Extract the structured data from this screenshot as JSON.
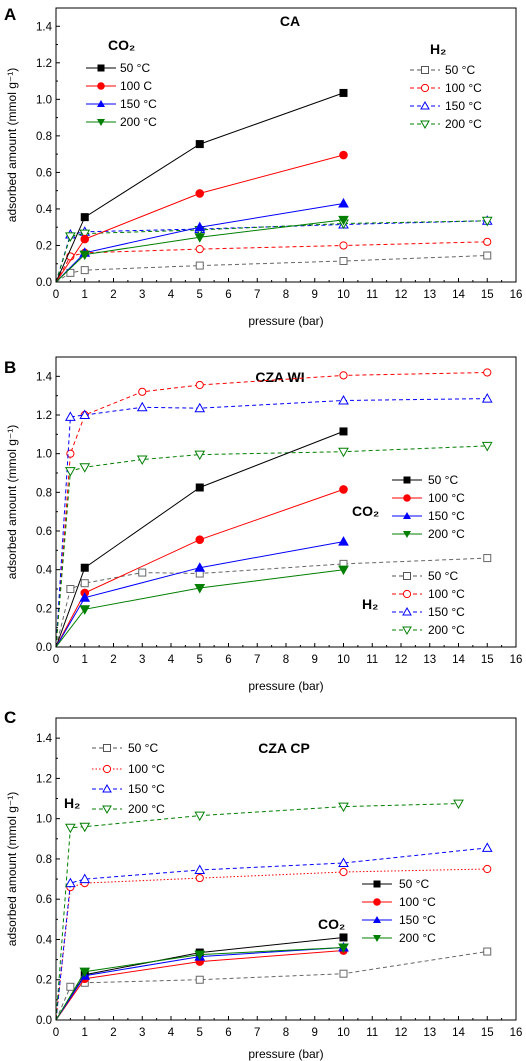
{
  "colors": {
    "black": "#000000",
    "red": "#ff0000",
    "blue": "#0000ff",
    "green": "#007f00",
    "grey": "#666666"
  },
  "chart_data": [
    {
      "panel": "A",
      "type": "line",
      "title": "CA",
      "xlabel": "pressure (bar)",
      "ylabel": "adsorbed amount (mmol g⁻¹)",
      "xlim": [
        0,
        16
      ],
      "ylim": [
        0,
        1.5
      ],
      "xticks": [
        "0",
        "1",
        "2",
        "3",
        "4",
        "5",
        "6",
        "7",
        "8",
        "9",
        "10",
        "11",
        "12",
        "13",
        "14",
        "15",
        "16"
      ],
      "yticks": [
        "0.0",
        "0.2",
        "0.4",
        "0.6",
        "0.8",
        "1.0",
        "1.2",
        "1.4"
      ],
      "groups": [
        {
          "label": "CO₂",
          "entries": [
            "50 °C",
            "100 C",
            "150 °C",
            "200 °C"
          ]
        },
        {
          "label": "H₂",
          "entries": [
            "50 °C",
            "100 °C",
            "150 °C",
            "200 °C"
          ]
        }
      ],
      "series": [
        {
          "name": "50 °C",
          "gas": "CO2",
          "x": [
            0,
            1,
            5,
            10
          ],
          "y": [
            0,
            0.355,
            0.755,
            1.035
          ]
        },
        {
          "name": "100 C",
          "gas": "CO2",
          "x": [
            0,
            1,
            5,
            10
          ],
          "y": [
            0,
            0.235,
            0.485,
            0.695
          ]
        },
        {
          "name": "150 °C",
          "gas": "CO2",
          "x": [
            0,
            1,
            5,
            10
          ],
          "y": [
            0,
            0.16,
            0.3,
            0.43
          ]
        },
        {
          "name": "200 °C",
          "gas": "CO2",
          "x": [
            0,
            1,
            5,
            10
          ],
          "y": [
            0,
            0.15,
            0.245,
            0.34
          ]
        },
        {
          "name": "50 °C",
          "gas": "H2",
          "x": [
            0,
            0.5,
            1,
            5,
            10,
            15
          ],
          "y": [
            0,
            0.05,
            0.065,
            0.09,
            0.115,
            0.145
          ]
        },
        {
          "name": "100 °C",
          "gas": "H2",
          "x": [
            0,
            0.5,
            1,
            5,
            10,
            15
          ],
          "y": [
            0,
            0.14,
            0.16,
            0.18,
            0.2,
            0.22
          ]
        },
        {
          "name": "150 °C",
          "gas": "H2",
          "x": [
            0,
            0.5,
            1,
            5,
            10,
            15
          ],
          "y": [
            0,
            0.26,
            0.275,
            0.29,
            0.315,
            0.335
          ]
        },
        {
          "name": "200 °C",
          "gas": "H2",
          "x": [
            0,
            0.5,
            1,
            5,
            10,
            15
          ],
          "y": [
            0,
            0.25,
            0.265,
            0.285,
            0.32,
            0.335
          ]
        }
      ]
    },
    {
      "panel": "B",
      "type": "line",
      "title": "CZA WI",
      "xlabel": "pressure (bar)",
      "ylabel": "adsorbed amount (mmol g⁻¹)",
      "xlim": [
        0,
        16
      ],
      "ylim": [
        0,
        1.5
      ],
      "xticks": [
        "0",
        "1",
        "2",
        "3",
        "4",
        "5",
        "6",
        "7",
        "8",
        "9",
        "10",
        "11",
        "12",
        "13",
        "14",
        "15",
        "16"
      ],
      "yticks": [
        "0.0",
        "0.2",
        "0.4",
        "0.6",
        "0.8",
        "1.0",
        "1.2",
        "1.4"
      ],
      "groups": [
        {
          "label": "CO₂",
          "entries": [
            "50 °C",
            "100 °C",
            "150 °C",
            "200 °C"
          ]
        },
        {
          "label": "H₂",
          "entries": [
            "50 °C",
            "100 °C",
            "150 °C",
            "200 °C"
          ]
        }
      ],
      "series": [
        {
          "name": "50 °C",
          "gas": "CO2",
          "x": [
            0,
            1,
            5,
            10
          ],
          "y": [
            0,
            0.41,
            0.825,
            1.115
          ]
        },
        {
          "name": "100 °C",
          "gas": "CO2",
          "x": [
            0,
            1,
            5,
            10
          ],
          "y": [
            0,
            0.28,
            0.555,
            0.815
          ]
        },
        {
          "name": "150 °C",
          "gas": "CO2",
          "x": [
            0,
            1,
            5,
            10
          ],
          "y": [
            0,
            0.255,
            0.41,
            0.545
          ]
        },
        {
          "name": "200 °C",
          "gas": "CO2",
          "x": [
            0,
            1,
            5,
            10
          ],
          "y": [
            0,
            0.195,
            0.305,
            0.4
          ]
        },
        {
          "name": "50 °C",
          "gas": "H2",
          "x": [
            0,
            0.5,
            1,
            3,
            5,
            10,
            15
          ],
          "y": [
            0,
            0.3,
            0.33,
            0.385,
            0.38,
            0.43,
            0.46
          ]
        },
        {
          "name": "100 °C",
          "gas": "H2",
          "x": [
            0,
            0.5,
            1,
            3,
            5,
            10,
            15
          ],
          "y": [
            0,
            1.0,
            1.2,
            1.32,
            1.355,
            1.405,
            1.42
          ]
        },
        {
          "name": "150 °C",
          "gas": "H2",
          "x": [
            0,
            0.5,
            1,
            3,
            5,
            10,
            15
          ],
          "y": [
            0,
            1.19,
            1.2,
            1.24,
            1.235,
            1.275,
            1.285
          ]
        },
        {
          "name": "200 °C",
          "gas": "H2",
          "x": [
            0,
            0.5,
            1,
            3,
            5,
            10,
            15
          ],
          "y": [
            0,
            0.91,
            0.93,
            0.97,
            0.995,
            1.01,
            1.04
          ]
        }
      ]
    },
    {
      "panel": "C",
      "type": "line",
      "title": "CZA CP",
      "xlabel": "pressure (bar)",
      "ylabel": "adsorbed amount (mmol g⁻¹)",
      "xlim": [
        0,
        16
      ],
      "ylim": [
        0,
        1.5
      ],
      "xticks": [
        "0",
        "1",
        "2",
        "3",
        "4",
        "5",
        "6",
        "7",
        "8",
        "9",
        "10",
        "11",
        "12",
        "13",
        "14",
        "15",
        "16"
      ],
      "yticks": [
        "0.0",
        "0.2",
        "0.4",
        "0.6",
        "0.8",
        "1.0",
        "1.2",
        "1.4"
      ],
      "groups": [
        {
          "label": "H₂",
          "entries": [
            "50 °C",
            "100 °C",
            "150 °C",
            "200 °C"
          ]
        },
        {
          "label": "CO₂",
          "entries": [
            "50 °C",
            "100 °C",
            "150 °C",
            "200 °C"
          ]
        }
      ],
      "series": [
        {
          "name": "50 °C",
          "gas": "H2",
          "x": [
            0,
            0.5,
            1,
            5,
            10,
            15
          ],
          "y": [
            0,
            0.165,
            0.185,
            0.2,
            0.23,
            0.34
          ]
        },
        {
          "name": "100 °C",
          "gas": "H2",
          "x": [
            0,
            0.5,
            1,
            5,
            10,
            15
          ],
          "y": [
            0,
            0.66,
            0.68,
            0.705,
            0.735,
            0.75
          ]
        },
        {
          "name": "150 °C",
          "gas": "H2",
          "x": [
            0,
            0.5,
            1,
            5,
            10,
            15
          ],
          "y": [
            0,
            0.68,
            0.7,
            0.745,
            0.78,
            0.855
          ]
        },
        {
          "name": "200 °C",
          "gas": "H2",
          "x": [
            0,
            0.5,
            1,
            5,
            10,
            14
          ],
          "y": [
            0,
            0.955,
            0.96,
            1.015,
            1.06,
            1.075
          ]
        },
        {
          "name": "50 °C",
          "gas": "CO2",
          "x": [
            0,
            1,
            5,
            10
          ],
          "y": [
            0,
            0.225,
            0.335,
            0.41
          ]
        },
        {
          "name": "100 °C",
          "gas": "CO2",
          "x": [
            0,
            1,
            5,
            10
          ],
          "y": [
            0,
            0.205,
            0.29,
            0.345
          ]
        },
        {
          "name": "150 °C",
          "gas": "CO2",
          "x": [
            0,
            1,
            5,
            10
          ],
          "y": [
            0,
            0.22,
            0.315,
            0.36
          ]
        },
        {
          "name": "200 °C",
          "gas": "CO2",
          "x": [
            0,
            1,
            5,
            10
          ],
          "y": [
            0,
            0.24,
            0.325,
            0.36
          ]
        }
      ]
    }
  ]
}
